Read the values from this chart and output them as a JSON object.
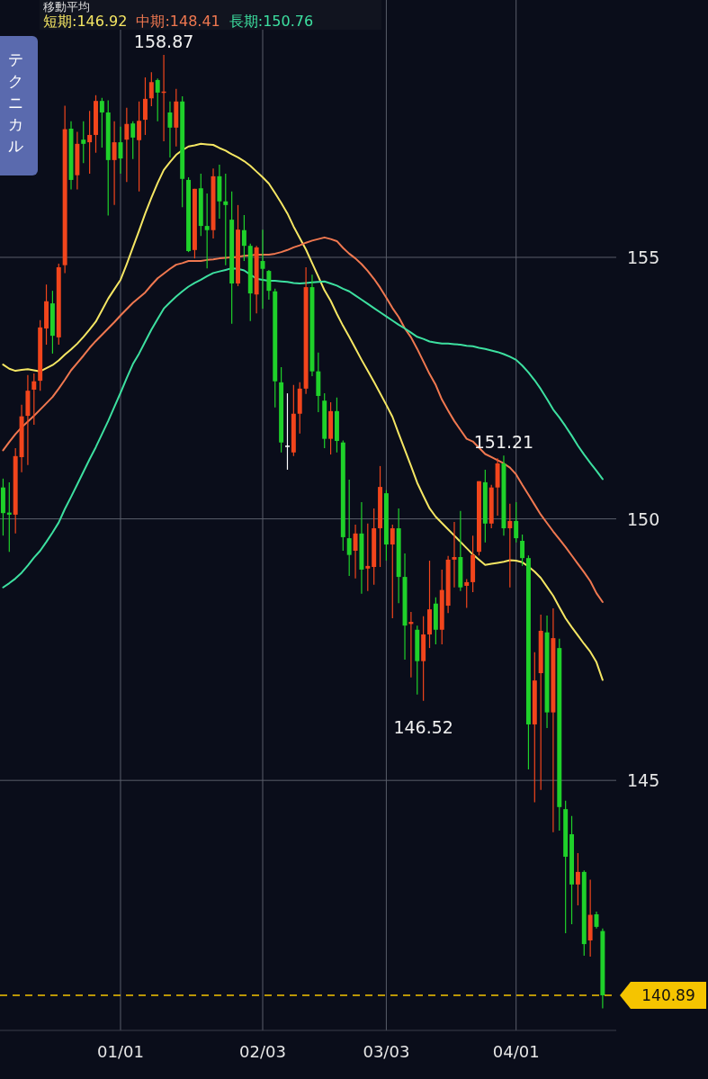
{
  "chart_data": {
    "type": "candlestick",
    "legend_title": "移動平均",
    "categories": [
      null,
      null,
      null,
      null,
      null,
      null,
      null,
      null,
      null,
      null,
      null,
      null,
      null,
      null,
      null,
      null,
      null,
      null,
      null,
      "01/01",
      null,
      null,
      null,
      null,
      null,
      null,
      null,
      null,
      null,
      null,
      null,
      null,
      null,
      null,
      null,
      null,
      null,
      null,
      null,
      null,
      null,
      null,
      "02/03",
      null,
      null,
      null,
      null,
      null,
      null,
      null,
      null,
      null,
      null,
      null,
      null,
      null,
      null,
      null,
      null,
      null,
      null,
      null,
      "03/03",
      null,
      null,
      null,
      null,
      null,
      null,
      null,
      null,
      null,
      null,
      null,
      null,
      null,
      null,
      null,
      null,
      null,
      null,
      null,
      null,
      "04/01",
      null,
      null,
      null,
      null,
      null,
      null,
      null,
      null,
      null,
      null,
      null,
      null,
      null,
      null
    ],
    "ohlc": [
      [
        150.6,
        150.77,
        149.68,
        150.11
      ],
      [
        150.12,
        150.7,
        149.37,
        150.08
      ],
      [
        150.08,
        151.35,
        149.72,
        151.2
      ],
      [
        151.18,
        152.18,
        150.89,
        151.96
      ],
      [
        151.97,
        152.75,
        151.03,
        152.45
      ],
      [
        152.47,
        152.78,
        151.8,
        152.63
      ],
      [
        152.64,
        153.8,
        152.45,
        153.66
      ],
      [
        153.64,
        154.48,
        153.33,
        154.16
      ],
      [
        154.12,
        154.36,
        153.16,
        153.5
      ],
      [
        153.47,
        154.88,
        153.33,
        154.81
      ],
      [
        154.85,
        157.9,
        154.7,
        157.45
      ],
      [
        157.46,
        157.6,
        156.3,
        156.48
      ],
      [
        156.57,
        157.4,
        156.3,
        157.17
      ],
      [
        157.25,
        157.6,
        156.8,
        157.17
      ],
      [
        157.2,
        157.8,
        156.6,
        157.34
      ],
      [
        157.34,
        158.1,
        157.0,
        157.99
      ],
      [
        157.99,
        158.05,
        157.1,
        157.77
      ],
      [
        157.77,
        158.0,
        155.8,
        156.86
      ],
      [
        156.86,
        157.6,
        156.0,
        157.2
      ],
      [
        157.2,
        157.5,
        156.6,
        156.89
      ],
      [
        157.25,
        157.86,
        156.44,
        157.55
      ],
      [
        157.56,
        157.6,
        156.88,
        157.29
      ],
      [
        157.24,
        157.98,
        156.26,
        157.61
      ],
      [
        157.63,
        158.44,
        157.34,
        158.03
      ],
      [
        158.04,
        158.54,
        157.89,
        158.35
      ],
      [
        158.39,
        158.42,
        157.6,
        158.15
      ],
      [
        158.15,
        158.87,
        157.22,
        158.17
      ],
      [
        157.77,
        157.98,
        156.91,
        157.48
      ],
      [
        157.48,
        158.22,
        157.12,
        157.98
      ],
      [
        157.98,
        158.08,
        155.96,
        156.5
      ],
      [
        156.48,
        156.53,
        155.1,
        155.12
      ],
      [
        155.14,
        156.31,
        154.98,
        156.31
      ],
      [
        156.32,
        156.6,
        155.41,
        155.6
      ],
      [
        155.6,
        156.22,
        154.79,
        155.52
      ],
      [
        155.52,
        156.7,
        155.36,
        156.55
      ],
      [
        156.55,
        156.77,
        155.74,
        156.07
      ],
      [
        156.07,
        156.6,
        154.85,
        156.0
      ],
      [
        155.72,
        156.26,
        153.73,
        154.5
      ],
      [
        154.5,
        156.0,
        154.45,
        155.53
      ],
      [
        155.52,
        155.81,
        154.93,
        155.22
      ],
      [
        155.22,
        155.26,
        153.78,
        154.31
      ],
      [
        154.29,
        155.22,
        153.93,
        155.19
      ],
      [
        154.93,
        155.53,
        154.02,
        154.78
      ],
      [
        154.74,
        154.76,
        154.19,
        154.36
      ],
      [
        154.35,
        154.4,
        152.13,
        152.63
      ],
      [
        152.61,
        152.9,
        151.27,
        151.46
      ],
      [
        151.4,
        152.4,
        150.94,
        151.4
      ],
      [
        151.27,
        152.56,
        151.2,
        152.01
      ],
      [
        152.01,
        152.61,
        151.63,
        152.49
      ],
      [
        152.49,
        154.81,
        152.39,
        154.43
      ],
      [
        154.43,
        154.67,
        152.73,
        152.82
      ],
      [
        152.82,
        153.18,
        152.04,
        152.35
      ],
      [
        152.26,
        152.4,
        151.35,
        151.53
      ],
      [
        151.53,
        152.23,
        151.23,
        152.06
      ],
      [
        152.06,
        152.32,
        151.27,
        151.49
      ],
      [
        151.46,
        151.5,
        149.39,
        149.65
      ],
      [
        149.63,
        150.75,
        148.91,
        149.31
      ],
      [
        149.39,
        149.89,
        148.86,
        149.72
      ],
      [
        149.72,
        150.32,
        148.57,
        149.03
      ],
      [
        149.05,
        149.91,
        148.62,
        149.1
      ],
      [
        149.08,
        150.2,
        148.74,
        149.82
      ],
      [
        149.82,
        151.01,
        149.08,
        150.61
      ],
      [
        150.49,
        150.55,
        149.2,
        149.51
      ],
      [
        149.51,
        149.89,
        148.1,
        149.82
      ],
      [
        149.82,
        150.2,
        148.39,
        148.89
      ],
      [
        148.89,
        149.34,
        147.31,
        147.96
      ],
      [
        147.99,
        148.22,
        146.97,
        148.03
      ],
      [
        147.88,
        147.96,
        146.64,
        147.28
      ],
      [
        147.28,
        148.14,
        146.52,
        147.79
      ],
      [
        147.79,
        149.2,
        147.53,
        148.27
      ],
      [
        148.38,
        148.5,
        147.6,
        147.88
      ],
      [
        147.88,
        149.03,
        147.6,
        148.64
      ],
      [
        148.34,
        149.29,
        148.2,
        149.22
      ],
      [
        149.22,
        149.94,
        148.69,
        149.27
      ],
      [
        149.27,
        150.15,
        148.62,
        148.69
      ],
      [
        148.72,
        148.85,
        148.3,
        148.79
      ],
      [
        148.79,
        149.68,
        148.6,
        149.31
      ],
      [
        149.37,
        150.72,
        149.3,
        150.72
      ],
      [
        150.7,
        150.94,
        149.55,
        149.91
      ],
      [
        149.91,
        150.65,
        149.82,
        150.6
      ],
      [
        150.6,
        151.16,
        150.06,
        151.06
      ],
      [
        151.06,
        151.21,
        149.68,
        149.82
      ],
      [
        149.82,
        150.29,
        148.69,
        149.96
      ],
      [
        149.96,
        150.32,
        149.55,
        149.63
      ],
      [
        149.58,
        149.7,
        149.1,
        149.25
      ],
      [
        149.25,
        149.3,
        145.21,
        146.07
      ],
      [
        146.07,
        147.45,
        144.58,
        146.91
      ],
      [
        147.05,
        148.17,
        144.82,
        147.86
      ],
      [
        147.83,
        148.15,
        146.0,
        146.3
      ],
      [
        146.3,
        148.29,
        144.01,
        147.72
      ],
      [
        147.53,
        147.71,
        144.04,
        144.49
      ],
      [
        144.45,
        144.61,
        142.08,
        143.54
      ],
      [
        143.97,
        144.32,
        142.25,
        143.01
      ],
      [
        143.01,
        143.61,
        142.61,
        143.25
      ],
      [
        143.25,
        143.28,
        141.65,
        141.87
      ],
      [
        141.94,
        143.1,
        141.63,
        142.43
      ],
      [
        142.44,
        142.49,
        142.17,
        142.2
      ],
      [
        142.12,
        142.17,
        140.64,
        140.89
      ]
    ],
    "series": [
      {
        "type": "line",
        "name": "短期:146.92",
        "color": "#f5e663",
        "values": [
          152.95,
          152.87,
          152.83,
          152.85,
          152.86,
          152.84,
          152.82,
          152.88,
          152.94,
          153.03,
          153.14,
          153.24,
          153.35,
          153.48,
          153.62,
          153.77,
          153.99,
          154.21,
          154.39,
          154.57,
          154.87,
          155.19,
          155.51,
          155.84,
          156.14,
          156.42,
          156.67,
          156.82,
          156.96,
          157.05,
          157.12,
          157.14,
          157.17,
          157.16,
          157.15,
          157.09,
          157.04,
          156.97,
          156.91,
          156.84,
          156.75,
          156.64,
          156.53,
          156.41,
          156.23,
          156.04,
          155.84,
          155.59,
          155.37,
          155.15,
          154.89,
          154.63,
          154.37,
          154.17,
          153.92,
          153.69,
          153.48,
          153.26,
          153.04,
          152.83,
          152.62,
          152.4,
          152.18,
          151.95,
          151.63,
          151.32,
          151.01,
          150.69,
          150.44,
          150.2,
          150.04,
          149.92,
          149.8,
          149.68,
          149.56,
          149.44,
          149.32,
          149.22,
          149.12,
          149.14,
          149.16,
          149.18,
          149.21,
          149.2,
          149.17,
          149.09,
          148.99,
          148.87,
          148.7,
          148.53,
          148.31,
          148.1,
          147.93,
          147.77,
          147.61,
          147.46,
          147.26,
          146.92
        ]
      },
      {
        "type": "line",
        "name": "中期:148.41",
        "color": "#f07850",
        "values": [
          151.31,
          151.47,
          151.62,
          151.75,
          151.86,
          151.97,
          152.09,
          152.21,
          152.33,
          152.49,
          152.66,
          152.84,
          152.98,
          153.12,
          153.27,
          153.4,
          153.52,
          153.64,
          153.76,
          153.89,
          154.01,
          154.13,
          154.23,
          154.33,
          154.47,
          154.6,
          154.69,
          154.78,
          154.86,
          154.89,
          154.93,
          154.93,
          154.93,
          154.95,
          154.96,
          154.98,
          154.99,
          155.0,
          155.01,
          155.03,
          155.04,
          155.05,
          155.05,
          155.05,
          155.07,
          155.1,
          155.14,
          155.19,
          155.23,
          155.28,
          155.32,
          155.35,
          155.38,
          155.35,
          155.31,
          155.18,
          155.07,
          154.98,
          154.87,
          154.74,
          154.59,
          154.42,
          154.23,
          154.03,
          153.86,
          153.64,
          153.47,
          153.25,
          153.01,
          152.77,
          152.56,
          152.28,
          152.07,
          151.87,
          151.7,
          151.53,
          151.48,
          151.36,
          151.24,
          151.18,
          151.12,
          151.06,
          150.98,
          150.85,
          150.65,
          150.46,
          150.27,
          150.08,
          149.92,
          149.76,
          149.61,
          149.46,
          149.3,
          149.14,
          148.98,
          148.81,
          148.58,
          148.41
        ]
      },
      {
        "type": "line",
        "name": "長期:150.76",
        "color": "#3de0a0",
        "values": [
          148.69,
          148.77,
          148.86,
          148.97,
          149.11,
          149.26,
          149.39,
          149.56,
          149.74,
          149.93,
          150.19,
          150.42,
          150.66,
          150.9,
          151.14,
          151.37,
          151.62,
          151.87,
          152.14,
          152.41,
          152.69,
          152.96,
          153.16,
          153.39,
          153.62,
          153.82,
          154.02,
          154.14,
          154.25,
          154.35,
          154.44,
          154.51,
          154.57,
          154.64,
          154.7,
          154.73,
          154.76,
          154.79,
          154.78,
          154.75,
          154.67,
          154.59,
          154.57,
          154.55,
          154.55,
          154.54,
          154.53,
          154.51,
          154.5,
          154.51,
          154.52,
          154.53,
          154.54,
          154.5,
          154.46,
          154.4,
          154.35,
          154.27,
          154.19,
          154.11,
          154.03,
          153.95,
          153.87,
          153.79,
          153.71,
          153.64,
          153.56,
          153.48,
          153.44,
          153.39,
          153.37,
          153.35,
          153.35,
          153.34,
          153.33,
          153.31,
          153.3,
          153.27,
          153.25,
          153.22,
          153.19,
          153.15,
          153.1,
          153.04,
          152.93,
          152.8,
          152.65,
          152.48,
          152.29,
          152.09,
          151.94,
          151.77,
          151.59,
          151.4,
          151.23,
          151.07,
          150.92,
          150.76
        ]
      }
    ],
    "ylim": [
      140.22,
      159.92
    ],
    "yticks": [
      145,
      150,
      155
    ],
    "grid": true,
    "legend": "top",
    "ref_lines": [
      {
        "axis": "y",
        "value": 140.89,
        "label": "140.89",
        "color": "#f5c400",
        "line_style": "dashed"
      }
    ],
    "annotations": [
      "テクニカル",
      {
        "text": "158.87",
        "y": 158.87
      },
      {
        "text": "146.52",
        "y": 146.52
      },
      {
        "text": "151.21",
        "y": 151.21
      }
    ]
  }
}
